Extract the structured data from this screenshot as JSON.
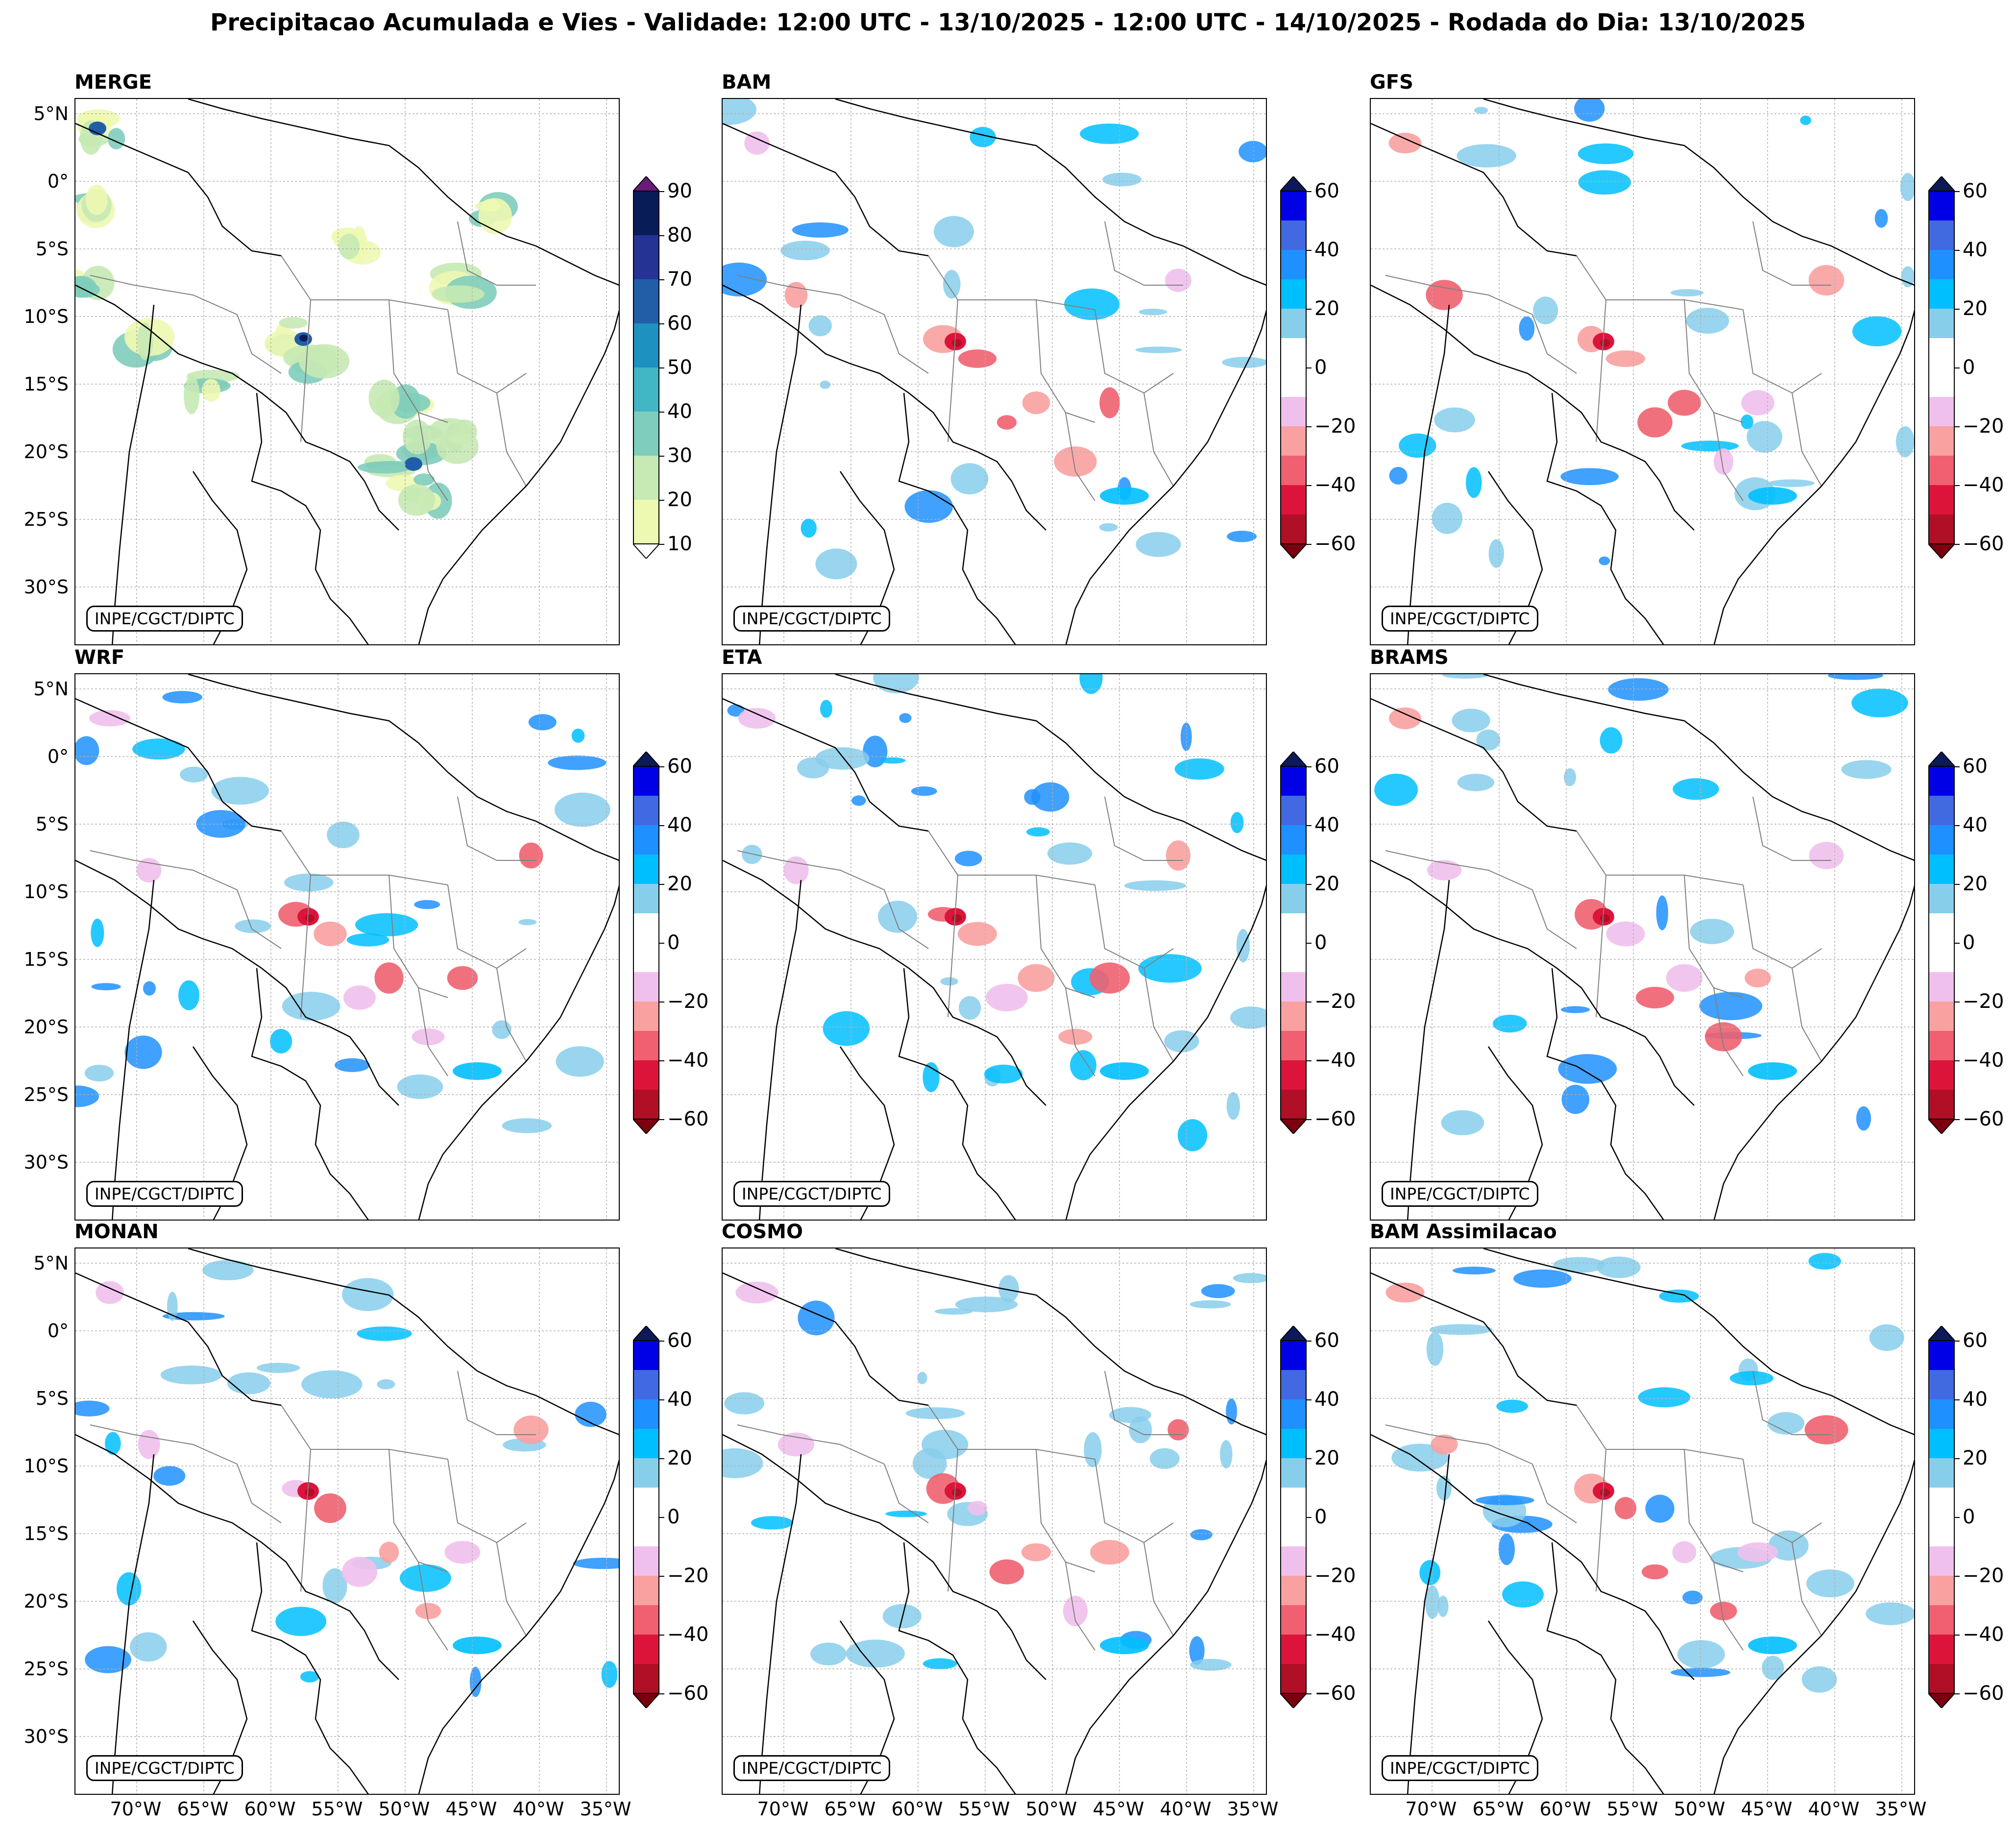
{
  "figure": {
    "title": "Precipitacao Acumulada e Vies - Validade: 12:00 UTC - 13/10/2025 - 12:00 UTC - 14/10/2025 - Rodada do Dia: 13/10/2025",
    "credit": "INPE/CGCT/DIPTC",
    "lat_labels": [
      "5°N",
      "0°",
      "5°S",
      "10°S",
      "15°S",
      "20°S",
      "25°S",
      "30°S"
    ],
    "lon_labels": [
      "70°W",
      "65°W",
      "60°W",
      "55°W",
      "50°W",
      "45°W",
      "40°W",
      "35°W"
    ]
  },
  "panels": [
    {
      "title": "MERGE",
      "kind": "precip"
    },
    {
      "title": "BAM",
      "kind": "bias"
    },
    {
      "title": "GFS",
      "kind": "bias"
    },
    {
      "title": "WRF",
      "kind": "bias"
    },
    {
      "title": "ETA",
      "kind": "bias"
    },
    {
      "title": "BRAMS",
      "kind": "bias"
    },
    {
      "title": "MONAN",
      "kind": "bias"
    },
    {
      "title": "COSMO",
      "kind": "bias"
    },
    {
      "title": "BAM Assimilacao",
      "kind": "bias"
    }
  ],
  "colorbars": {
    "precip": {
      "ticks": [
        "90",
        "80",
        "70",
        "60",
        "50",
        "40",
        "30",
        "20",
        "10"
      ],
      "colors": [
        "#081d58",
        "#253494",
        "#225ea8",
        "#1d91c0",
        "#41b6c4",
        "#7fcdbb",
        "#c7e9b4",
        "#edf8b1"
      ],
      "over_color": "#6a1b7a",
      "under_color": "#ffffff"
    },
    "bias": {
      "ticks": [
        "60",
        "40",
        "20",
        "0",
        "−20",
        "−40",
        "−60"
      ],
      "colors": [
        "#0000e6",
        "#4169e1",
        "#1e90ff",
        "#00bfff",
        "#87ceeb",
        "#ffffff",
        "#ffffff",
        "#f0c0ec",
        "#f9a0a0",
        "#f06070",
        "#dc143c",
        "#b00f25"
      ],
      "over_color": "#0c1a5a",
      "under_color": "#7a0010"
    }
  },
  "map": {
    "border_color": "#000000",
    "state_color": "#808080",
    "grid_color": "#b0b0b0"
  }
}
